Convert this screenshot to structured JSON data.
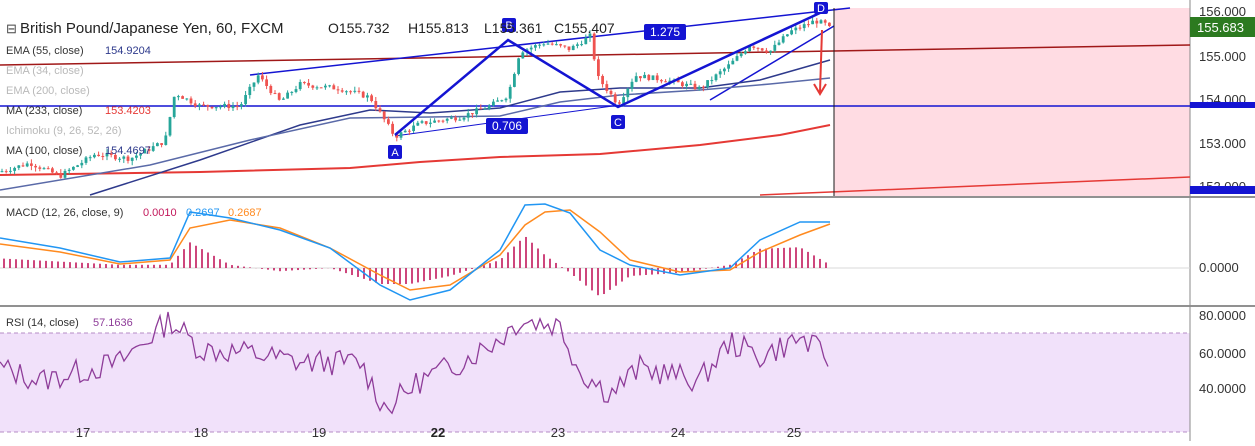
{
  "header": {
    "collapse_glyph": "⊟",
    "symbol": "British Pound/Japanese Yen, 60, FXCM",
    "open": "O155.732",
    "high": "H155.813",
    "low": "L155.361",
    "close": "C155.407"
  },
  "indicators": [
    {
      "label": "EMA (55, close)",
      "value": "154.9204",
      "color": "#2e3a8c",
      "faded": false
    },
    {
      "label": "EMA (34, close)",
      "value": "",
      "color": "#b0b0b0",
      "faded": true
    },
    {
      "label": "EMA (200, close)",
      "value": "",
      "color": "#b0b0b0",
      "faded": true
    },
    {
      "label": "MA (233, close)",
      "value": "153.4203",
      "color": "#e53935",
      "faded": false
    },
    {
      "label": "Ichimoku (9, 26, 52, 26)",
      "value": "",
      "color": "#b0b0b0",
      "faded": true
    },
    {
      "label": "MA (100, close)",
      "value": "154.4697",
      "color": "#2e3a8c",
      "faded": false
    }
  ],
  "macd": {
    "label": "MACD (12, 26, close, 9)",
    "hist": "0.0010",
    "macd": "0.2697",
    "signal": "0.2687"
  },
  "rsi": {
    "label": "RSI (14, close)",
    "value": "57.1636"
  },
  "price_axis": {
    "ticks": [
      "156.000",
      "155.000",
      "154.000",
      "153.000",
      "152.000"
    ],
    "current": "155.683"
  },
  "macd_axis": {
    "ticks": [
      "0.0000"
    ]
  },
  "rsi_axis": {
    "ticks": [
      "80.0000",
      "60.0000",
      "40.0000"
    ]
  },
  "time_axis": {
    "ticks": [
      "17",
      "18",
      "19",
      "22",
      "23",
      "24",
      "25"
    ],
    "bold_tick": "22"
  },
  "pattern": {
    "points": [
      "A",
      "B",
      "C",
      "D"
    ],
    "ratio_bc": "0.706",
    "ratio_cd": "1.275"
  },
  "colors": {
    "up": "#26a69a",
    "down": "#ef5350",
    "pattern": "#1414d2",
    "rsi": "#8e3c99",
    "macd": "#2196f3",
    "signal": "#ff8a1f",
    "hist": "#c2185b",
    "ma233": "#e53935",
    "ema55": "#2e3a8c",
    "ma100": "#5a6aa8",
    "trend": "#a01818",
    "zone": "#ffdce3",
    "rsi_band": "#f1e1fa"
  },
  "chart_data": [
    {
      "type": "candlestick",
      "title": "British Pound/Japanese Yen, 60, FXCM",
      "ylim": [
        151.9,
        156.1
      ],
      "x": [
        "17",
        "18",
        "19",
        "22",
        "23",
        "24",
        "25"
      ],
      "close_path": [
        [
          "17",
          152.4
        ],
        [
          "17",
          152.6
        ],
        [
          "18",
          153.8
        ],
        [
          "18",
          153.8
        ],
        [
          "19",
          154.3
        ],
        [
          "19",
          154.1
        ],
        [
          "22",
          153.2
        ],
        [
          "22",
          153.7
        ],
        [
          "23",
          155.2
        ],
        [
          "23",
          154.8
        ],
        [
          "24",
          154.4
        ],
        [
          "24",
          154.8
        ],
        [
          "25",
          155.8
        ],
        [
          "25",
          155.4
        ]
      ],
      "series": [
        {
          "name": "EMA (55, close)",
          "last": 154.92
        },
        {
          "name": "MA (233, close)",
          "last": 153.42
        },
        {
          "name": "MA (100, close)",
          "last": 154.47
        }
      ],
      "annotations": [
        "A",
        "B",
        "C",
        "D",
        "0.706",
        "1.275"
      ]
    },
    {
      "type": "line",
      "title": "MACD (12, 26, close, 9)",
      "series": [
        {
          "name": "MACD",
          "last": 0.2697
        },
        {
          "name": "Signal",
          "last": 0.2687
        },
        {
          "name": "Histogram",
          "last": 0.001
        }
      ]
    },
    {
      "type": "line",
      "title": "RSI (14, close)",
      "ylim": [
        25,
        85
      ],
      "bands": [
        30,
        70
      ],
      "series": [
        {
          "name": "RSI",
          "last": 57.1636
        }
      ]
    }
  ]
}
